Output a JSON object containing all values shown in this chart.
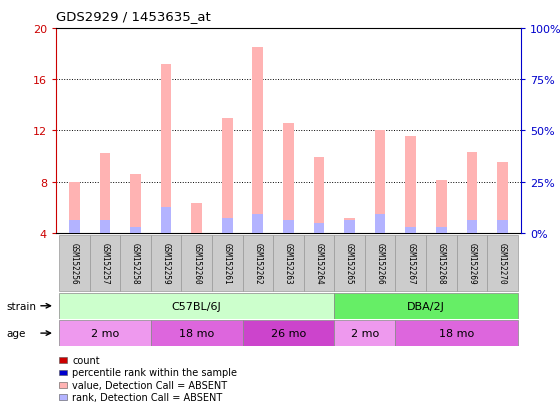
{
  "title": "GDS2929 / 1453635_at",
  "samples": [
    "GSM152256",
    "GSM152257",
    "GSM152258",
    "GSM152259",
    "GSM152260",
    "GSM152261",
    "GSM152262",
    "GSM152263",
    "GSM152264",
    "GSM152265",
    "GSM152266",
    "GSM152267",
    "GSM152268",
    "GSM152269",
    "GSM152270"
  ],
  "value_absent": [
    8.0,
    10.2,
    8.6,
    17.2,
    6.3,
    13.0,
    18.5,
    12.6,
    9.9,
    5.2,
    12.0,
    11.6,
    8.1,
    10.3,
    9.5
  ],
  "rank_absent": [
    5.0,
    5.0,
    4.5,
    6.0,
    4.0,
    5.2,
    5.5,
    5.0,
    4.8,
    5.0,
    5.5,
    4.5,
    4.5,
    5.0,
    5.0
  ],
  "ylim_left": [
    4,
    20
  ],
  "ylim_right": [
    0,
    100
  ],
  "yticks_left": [
    4,
    8,
    12,
    16,
    20
  ],
  "yticks_right": [
    0,
    25,
    50,
    75,
    100
  ],
  "color_value_absent": "#ffb3b3",
  "color_rank_absent": "#b3b3ff",
  "color_count": "#cc0000",
  "color_rank": "#0000cc",
  "strain_groups": [
    {
      "label": "C57BL/6J",
      "start": 0,
      "end": 9,
      "color": "#ccffcc"
    },
    {
      "label": "DBA/2J",
      "start": 9,
      "end": 15,
      "color": "#66ee66"
    }
  ],
  "age_groups": [
    {
      "label": "2 mo",
      "start": 0,
      "end": 3,
      "color": "#ee99ee"
    },
    {
      "label": "18 mo",
      "start": 3,
      "end": 6,
      "color": "#dd66dd"
    },
    {
      "label": "26 mo",
      "start": 6,
      "end": 9,
      "color": "#cc44cc"
    },
    {
      "label": "2 mo",
      "start": 9,
      "end": 11,
      "color": "#ee99ee"
    },
    {
      "label": "18 mo",
      "start": 11,
      "end": 15,
      "color": "#dd66dd"
    }
  ],
  "legend_items": [
    {
      "label": "count",
      "color": "#cc0000"
    },
    {
      "label": "percentile rank within the sample",
      "color": "#0000cc"
    },
    {
      "label": "value, Detection Call = ABSENT",
      "color": "#ffb3b3"
    },
    {
      "label": "rank, Detection Call = ABSENT",
      "color": "#b3b3ff"
    }
  ],
  "bar_width": 0.35,
  "background_color": "#ffffff",
  "plot_bg_color": "#ffffff",
  "left_axis_color": "#cc0000",
  "right_axis_color": "#0000cc"
}
